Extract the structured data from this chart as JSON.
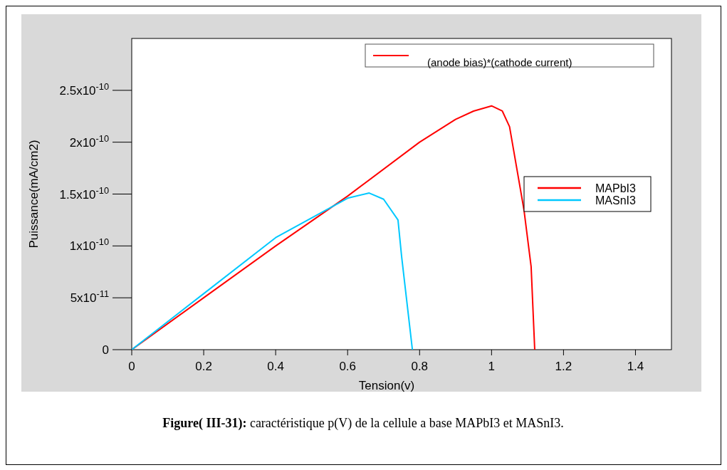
{
  "chart_data": {
    "type": "line",
    "xlabel": "Tension(v)",
    "ylabel": "Puissance(mA/cm2)",
    "xlim": [
      0,
      1.5
    ],
    "ylim": [
      0,
      3e-10
    ],
    "xticks": [
      0,
      0.2,
      0.4,
      0.6,
      0.8,
      1,
      1.2,
      1.4
    ],
    "yticks": [
      0,
      {
        "value": 5e-11,
        "label": "5x10$^{-11}$"
      },
      {
        "value": 1e-10,
        "label": "1x10$^{-10}$"
      },
      {
        "value": 1.5e-10,
        "label": "1.5x10$^{-10}$"
      },
      {
        "value": 2e-10,
        "label": "2x10$^{-10}$"
      },
      {
        "value": 2.5e-10,
        "label": "2.5x10$^{-10}$"
      }
    ],
    "grid": false,
    "legend": "right",
    "series": [
      {
        "name": "MAPbI3",
        "color": "#ff0000",
        "x": [
          0,
          0.2,
          0.4,
          0.6,
          0.8,
          0.9,
          0.95,
          1.0,
          1.03,
          1.05,
          1.07,
          1.09,
          1.11,
          1.12
        ],
        "values": [
          0,
          5e-11,
          1e-10,
          1.48e-10,
          2e-10,
          2.22e-10,
          2.3e-10,
          2.35e-10,
          2.3e-10,
          2.15e-10,
          1.75e-10,
          1.35e-10,
          8e-11,
          0
        ]
      },
      {
        "name": "MASnI3",
        "color": "#00c8ff",
        "x": [
          0,
          0.2,
          0.4,
          0.6,
          0.66,
          0.7,
          0.74,
          0.75,
          0.76,
          0.78
        ],
        "values": [
          0,
          5.4e-11,
          1.08e-10,
          1.46e-10,
          1.51e-10,
          1.45e-10,
          1.25e-10,
          9e-11,
          6e-11,
          0
        ]
      }
    ],
    "annotations": [
      "(anode bias)*(cathode current)",
      "Figure( III-31):",
      "caractéristique p(V) de la cellule a base MAPbI3 et MASnI3."
    ]
  }
}
